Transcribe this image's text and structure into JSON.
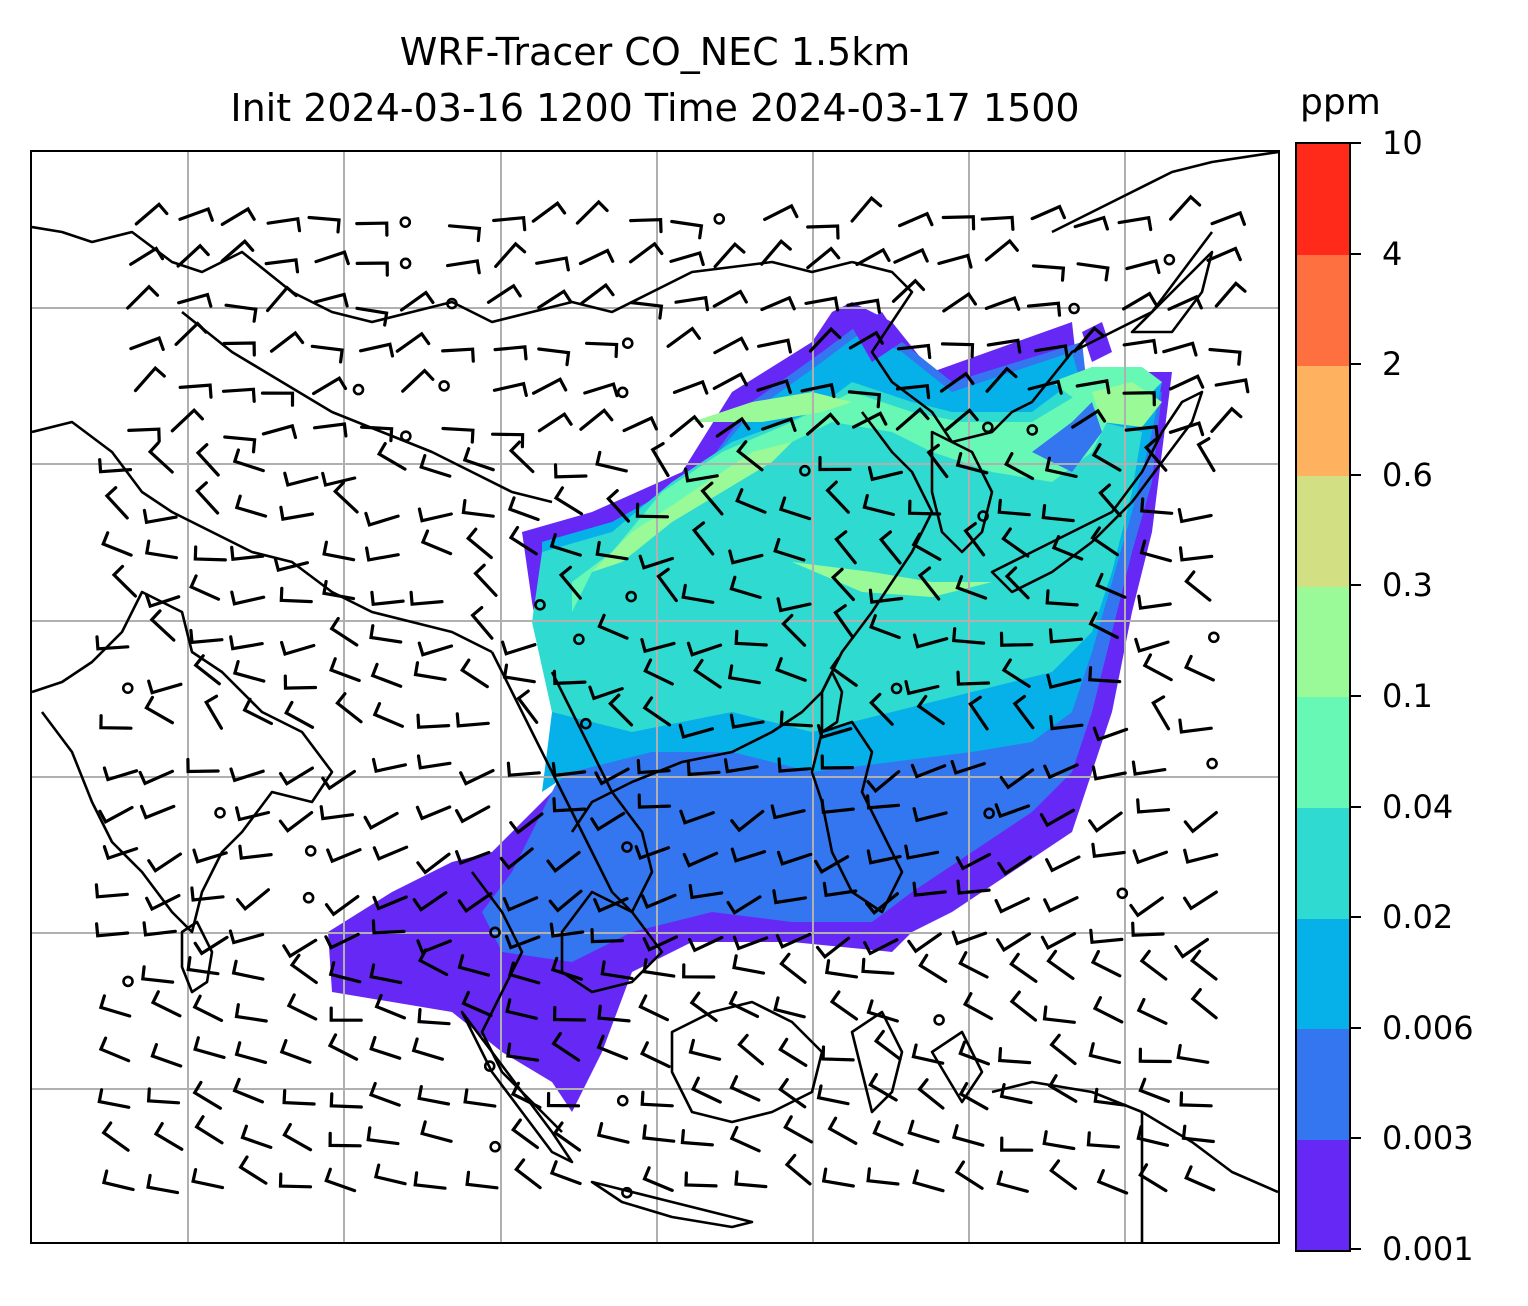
{
  "title": {
    "line1": "WRF-Tracer CO_NEC 1.5km",
    "line2": "Init 2024-03-16 1200 Time 2024-03-17 1500"
  },
  "colorbar": {
    "unit": "ppm",
    "levels": [
      "0.001",
      "0.003",
      "0.006",
      "0.02",
      "0.04",
      "0.1",
      "0.3",
      "0.6",
      "2",
      "4",
      "10"
    ],
    "colors": [
      "#6629f5",
      "#3376f0",
      "#06b0e8",
      "#2fdbd0",
      "#66f8b4",
      "#9afa98",
      "#d2e083",
      "#feb25f",
      "#ff7040",
      "#ff2a19"
    ]
  },
  "map": {
    "gridlines": "on",
    "colors": {
      "coastline": "#000000",
      "grid": "#b0b0b0",
      "barb": "#000000"
    }
  }
}
